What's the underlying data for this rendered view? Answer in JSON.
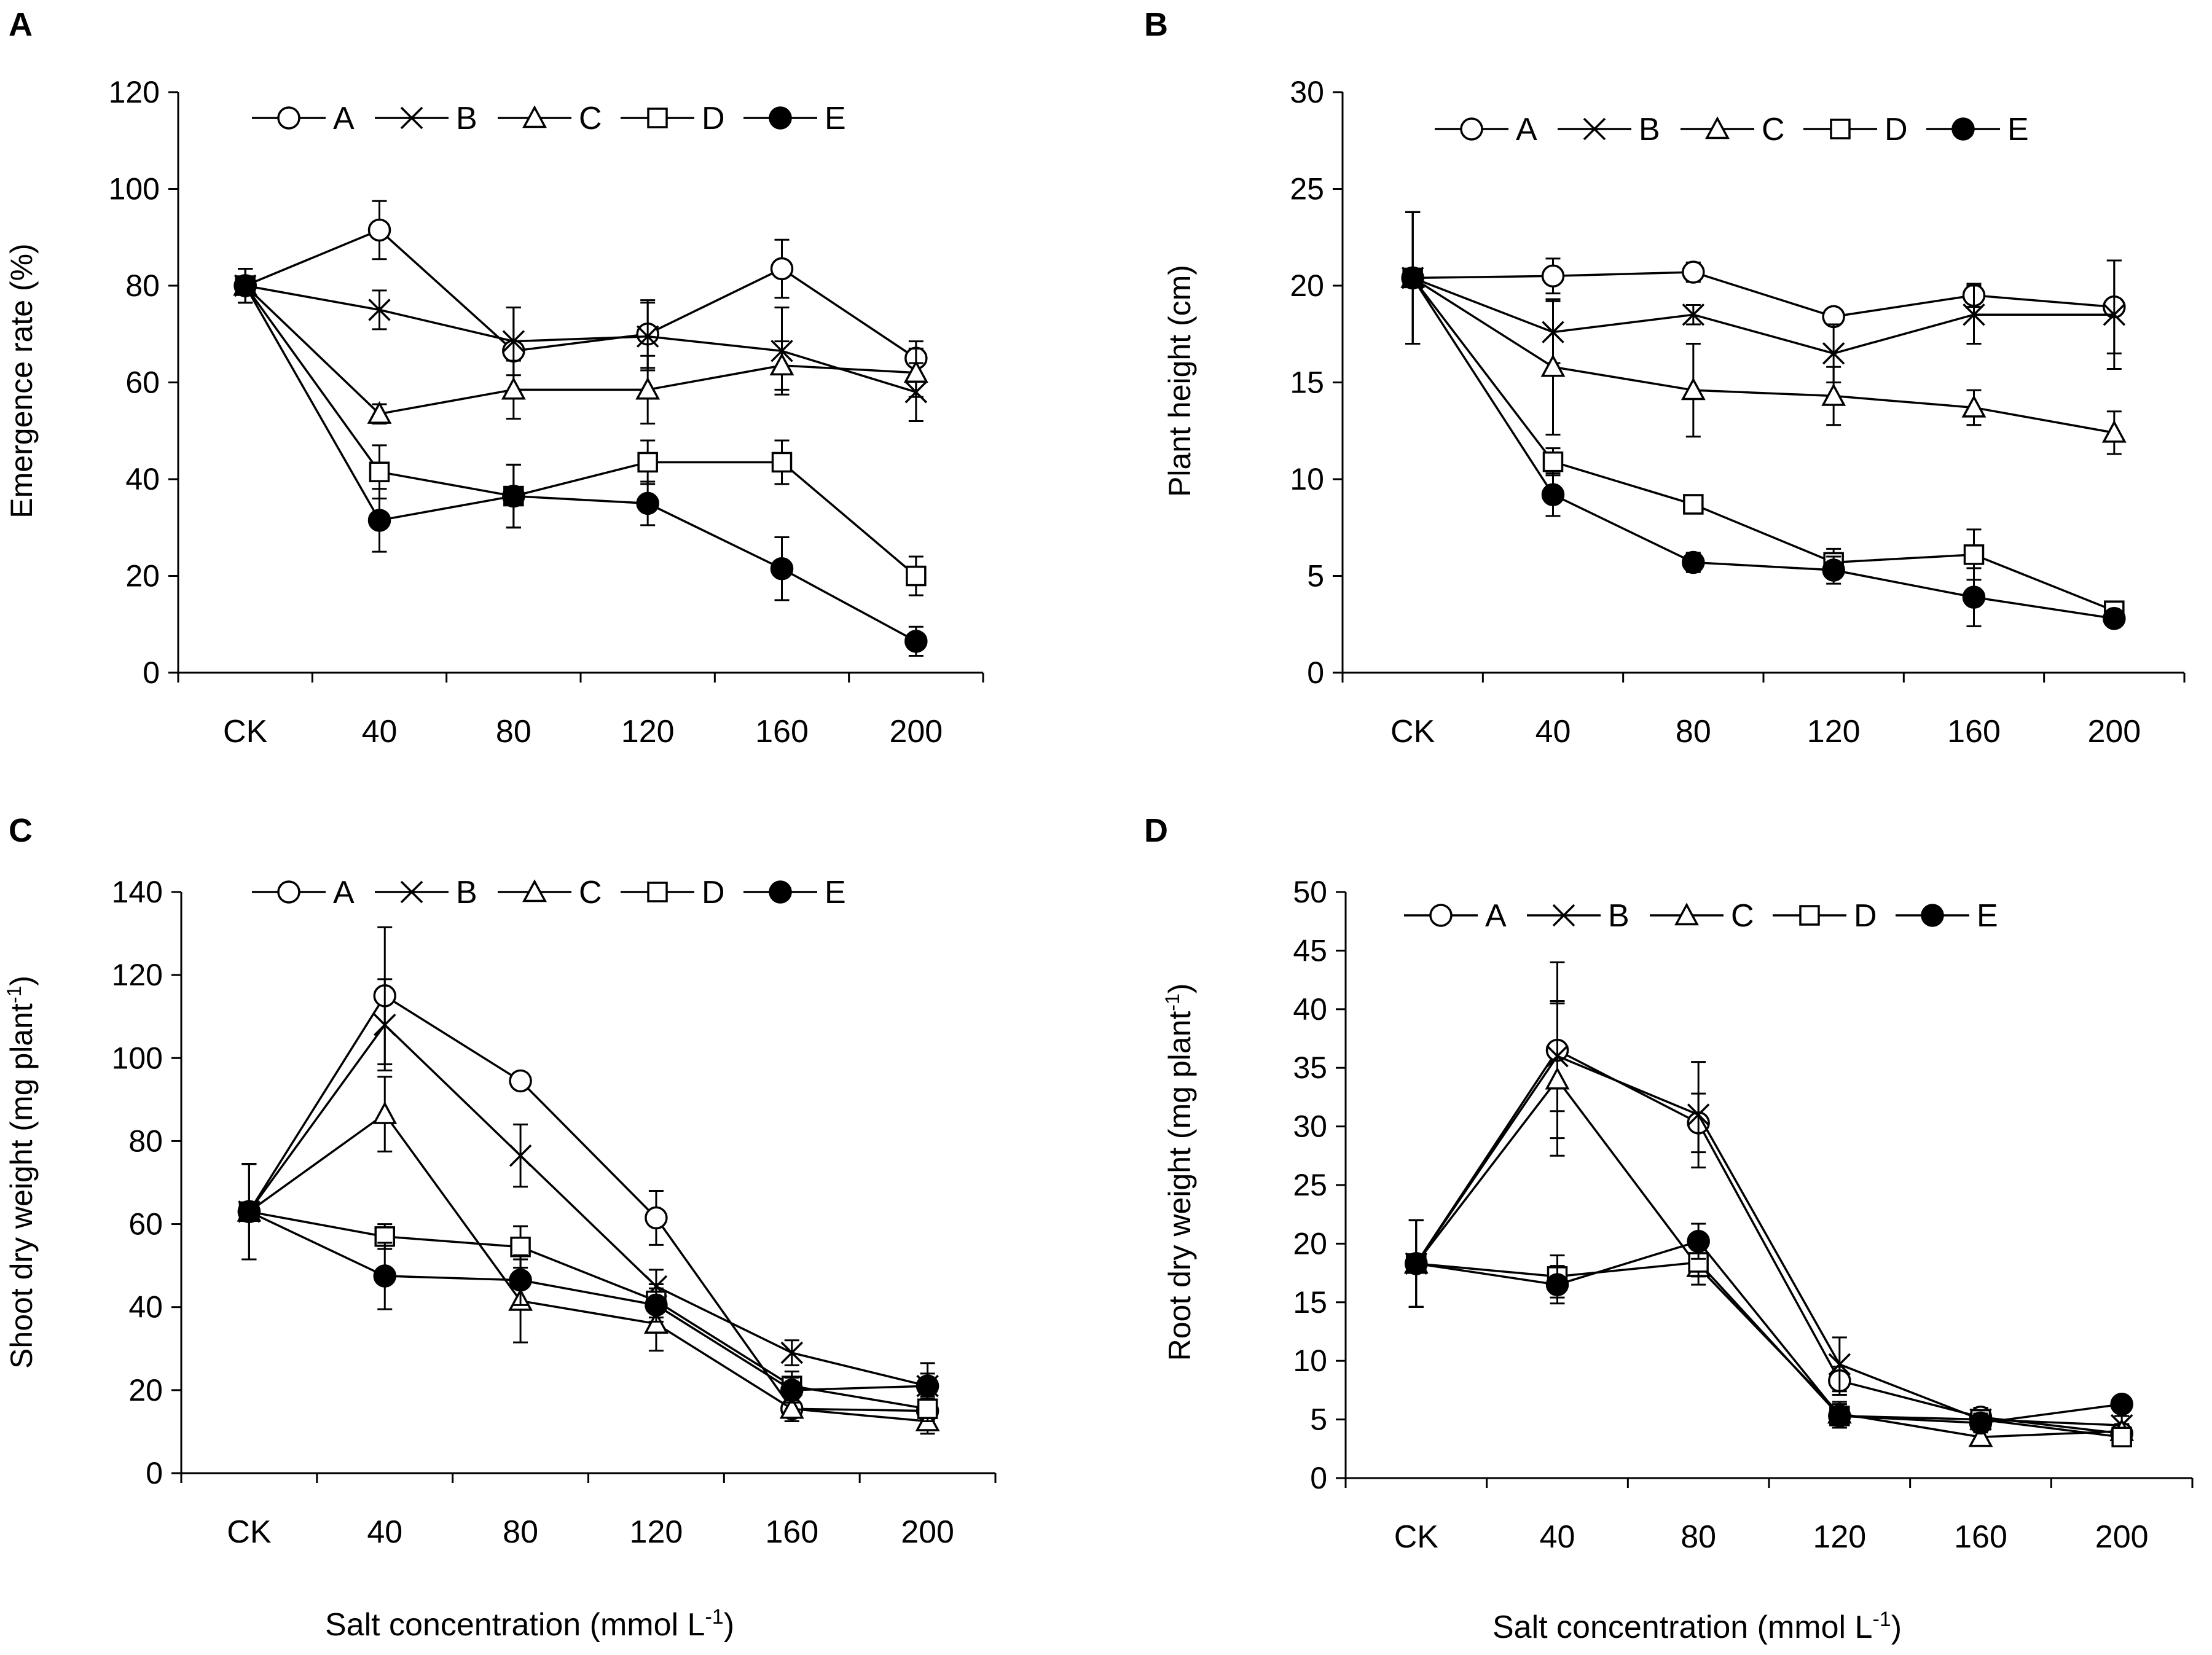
{
  "figure": {
    "xlabel": "Salt concentration (mmol L",
    "xlabel_sup": "-1",
    "xlabel_end": ")"
  },
  "legend_labels": [
    "A",
    "B",
    "C",
    "D",
    "E"
  ],
  "chart_data": [
    {
      "panel": "A",
      "type": "line",
      "categories": [
        "CK",
        "40",
        "80",
        "120",
        "160",
        "200"
      ],
      "ylabel": "Emergence rate (%)",
      "ylabel_sup": "",
      "ylabel_end": "",
      "ylim": [
        0,
        120
      ],
      "yticks": [
        0,
        20,
        40,
        60,
        80,
        100,
        120
      ],
      "series": [
        {
          "name": "A",
          "marker": "circle-open",
          "values": [
            80,
            91.5,
            66.5,
            70,
            83.5,
            65
          ],
          "errors": [
            3.5,
            6,
            9,
            7,
            6,
            3.5
          ]
        },
        {
          "name": "B",
          "marker": "x",
          "values": [
            80,
            75,
            68.5,
            69.5,
            66.5,
            58
          ],
          "errors": [
            3.5,
            4,
            7,
            7,
            9,
            6
          ]
        },
        {
          "name": "C",
          "marker": "triangle-open",
          "values": [
            80,
            53.5,
            58.5,
            58.5,
            63.5,
            62
          ],
          "errors": [
            3.5,
            2,
            6,
            7,
            5,
            5
          ]
        },
        {
          "name": "D",
          "marker": "square-open",
          "values": [
            80,
            41.5,
            36.5,
            43.5,
            43.5,
            20
          ],
          "errors": [
            3.5,
            5.5,
            6.5,
            4.5,
            4.5,
            4
          ]
        },
        {
          "name": "E",
          "marker": "circle-filled",
          "values": [
            80,
            31.5,
            36.5,
            35,
            21.5,
            6.5
          ],
          "errors": [
            3.5,
            6.5,
            6.5,
            4.5,
            6.5,
            3
          ]
        }
      ]
    },
    {
      "panel": "B",
      "type": "line",
      "categories": [
        "CK",
        "40",
        "80",
        "120",
        "160",
        "200"
      ],
      "ylabel": "Plant height (cm)",
      "ylabel_sup": "",
      "ylabel_end": "",
      "ylim": [
        0,
        30
      ],
      "yticks": [
        0,
        5,
        10,
        15,
        20,
        25,
        30
      ],
      "series": [
        {
          "name": "A",
          "marker": "circle-open",
          "values": [
            20.4,
            20.5,
            20.7,
            18.4,
            19.5,
            18.9
          ],
          "errors": [
            3.4,
            0.9,
            0.5,
            0.4,
            0.6,
            2.4
          ]
        },
        {
          "name": "B",
          "marker": "x",
          "values": [
            20.4,
            17.6,
            18.5,
            16.5,
            18.5,
            18.5
          ],
          "errors": [
            3.4,
            1.6,
            0.5,
            1.5,
            1.5,
            2.8
          ]
        },
        {
          "name": "C",
          "marker": "triangle-open",
          "values": [
            20.4,
            15.8,
            14.6,
            14.3,
            13.7,
            12.4
          ],
          "errors": [
            3.4,
            3.5,
            2.4,
            1.5,
            0.9,
            1.1
          ]
        },
        {
          "name": "D",
          "marker": "square-open",
          "values": [
            20.4,
            10.9,
            8.7,
            5.7,
            6.1,
            3.2
          ],
          "errors": [
            3.4,
            0.7,
            0.4,
            0.7,
            1.3,
            0.4
          ]
        },
        {
          "name": "E",
          "marker": "circle-filled",
          "values": [
            20.4,
            9.2,
            5.7,
            5.3,
            3.9,
            2.8
          ],
          "errors": [
            3.4,
            1.1,
            0.5,
            0.7,
            1.5,
            0.3
          ]
        }
      ]
    },
    {
      "panel": "C",
      "type": "line",
      "categories": [
        "CK",
        "40",
        "80",
        "120",
        "160",
        "200"
      ],
      "ylabel": "Shoot dry weight (mg plant",
      "ylabel_sup": "-1",
      "ylabel_end": ")",
      "ylim": [
        0,
        140
      ],
      "yticks": [
        0,
        20,
        40,
        60,
        80,
        100,
        120,
        140
      ],
      "series": [
        {
          "name": "A",
          "marker": "circle-open",
          "values": [
            63,
            115,
            94.5,
            61.5,
            15.5,
            15
          ],
          "errors": [
            11.5,
            16.5,
            1,
            6.5,
            2,
            2
          ]
        },
        {
          "name": "B",
          "marker": "x",
          "values": [
            63,
            108,
            76.5,
            45,
            29,
            21
          ],
          "errors": [
            11.5,
            11,
            7.5,
            4,
            3,
            5.5
          ]
        },
        {
          "name": "C",
          "marker": "triangle-open",
          "values": [
            63,
            86.5,
            41.5,
            36,
            15.5,
            12.5
          ],
          "errors": [
            11.5,
            9,
            10,
            6.5,
            3,
            3
          ]
        },
        {
          "name": "D",
          "marker": "square-open",
          "values": [
            63,
            57,
            54.5,
            41.5,
            21,
            15.5
          ],
          "errors": [
            11.5,
            3,
            5,
            4,
            3.5,
            3
          ]
        },
        {
          "name": "E",
          "marker": "circle-filled",
          "values": [
            63,
            47.5,
            46.5,
            40.5,
            20,
            21
          ],
          "errors": [
            11.5,
            8,
            6,
            4,
            3,
            3
          ]
        }
      ]
    },
    {
      "panel": "D",
      "type": "line",
      "categories": [
        "CK",
        "40",
        "80",
        "120",
        "160",
        "200"
      ],
      "ylabel": "Root dry weight (mg plant",
      "ylabel_sup": "-1",
      "ylabel_end": ")",
      "ylim": [
        0,
        50
      ],
      "yticks": [
        0,
        5,
        10,
        15,
        20,
        25,
        30,
        35,
        40,
        45,
        50
      ],
      "series": [
        {
          "name": "A",
          "marker": "circle-open",
          "values": [
            18.3,
            36.5,
            30.3,
            8.3,
            5.2,
            3.8
          ],
          "errors": [
            3.7,
            7.5,
            2.5,
            1.2,
            0.8,
            0.8
          ]
        },
        {
          "name": "B",
          "marker": "x",
          "values": [
            18.3,
            36,
            31,
            9.7,
            5,
            4.5
          ],
          "errors": [
            3.7,
            4.7,
            4.5,
            2.3,
            0.6,
            0.8
          ]
        },
        {
          "name": "C",
          "marker": "triangle-open",
          "values": [
            18.3,
            34,
            18,
            5.5,
            3.5,
            4
          ],
          "errors": [
            3.7,
            6.5,
            1.5,
            1,
            0.4,
            0.6
          ]
        },
        {
          "name": "D",
          "marker": "square-open",
          "values": [
            18.3,
            17.2,
            18.4,
            5.3,
            5,
            3.5
          ],
          "errors": [
            3.7,
            1.8,
            1.2,
            1,
            0.8,
            0.8
          ]
        },
        {
          "name": "E",
          "marker": "circle-filled",
          "values": [
            18.3,
            16.5,
            20.2,
            5.3,
            4.7,
            6.3
          ],
          "errors": [
            3.7,
            1.6,
            1.5,
            1,
            0.8,
            0.5
          ]
        }
      ]
    }
  ]
}
